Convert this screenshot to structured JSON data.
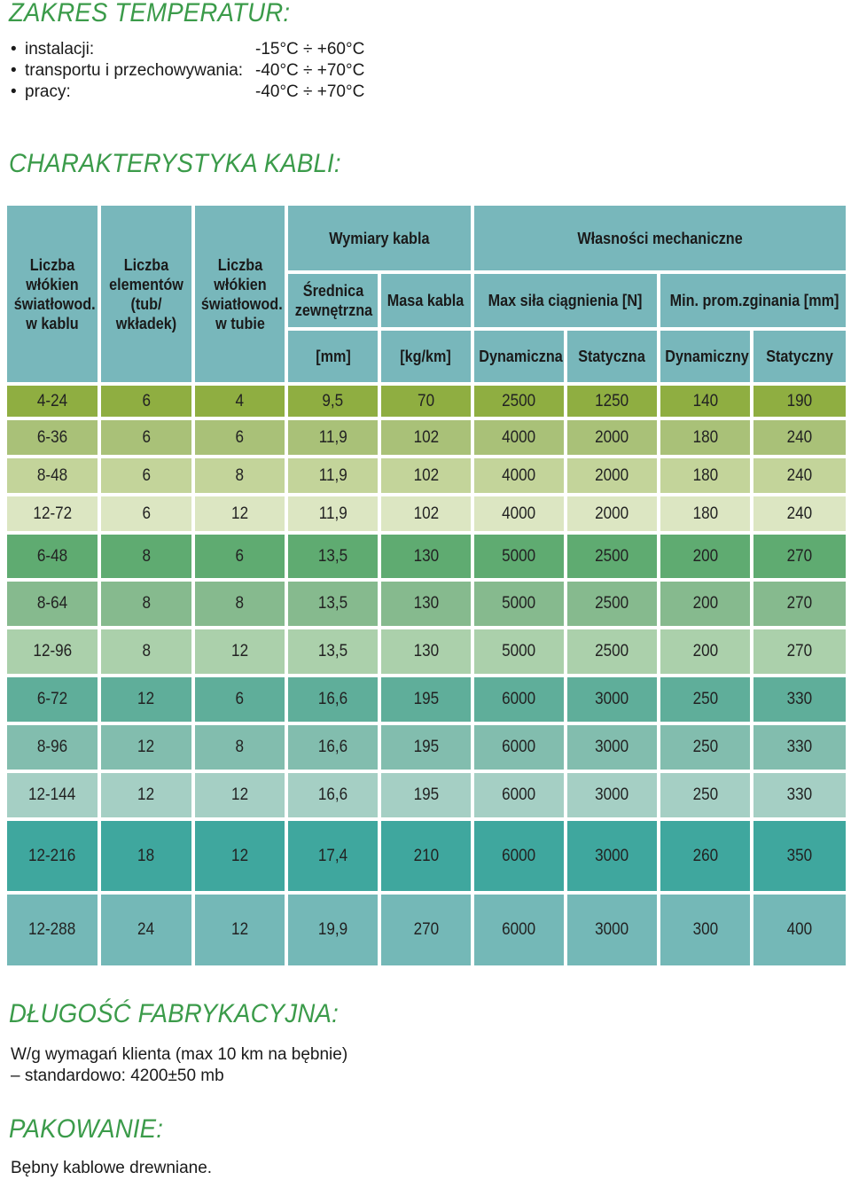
{
  "temperature": {
    "title": "ZAKRES TEMPERATUR:",
    "items": [
      {
        "bullet": "•",
        "label": "instalacji:",
        "value": "-15°C  ÷  +60°C"
      },
      {
        "bullet": "•",
        "label": "transportu i przechowywania:",
        "value": "-40°C  ÷  +70°C"
      },
      {
        "bullet": "•",
        "label": "pracy:",
        "value": "-40°C  ÷  +70°C"
      }
    ]
  },
  "characteristics": {
    "title": "CHARAKTERYSTYKA KABLI:",
    "headers": {
      "fibers_in_cable": "Liczba włókien światłowod. w kablu",
      "elements": "Liczba elementów (tub/ wkładek)",
      "fibers_in_tube": "Liczba włókien światłowod. w tubie",
      "dimensions": "Wymiary kabla",
      "mechanical": "Własności mechaniczne",
      "outer_diameter": "Średnica zewnętrzna",
      "cable_mass": "Masa kabla",
      "max_pull": "Max siła ciągnienia [N]",
      "min_bend": "Min. prom.zginania [mm]",
      "unit_mm": "[mm]",
      "unit_kgkm": "[kg/km]",
      "pull_dynamic": "Dynamiczna",
      "pull_static": "Statyczna",
      "bend_dynamic": "Dynamiczny",
      "bend_static": "Statyczny"
    },
    "rows": [
      [
        "4-24",
        "6",
        "4",
        "9,5",
        "70",
        "2500",
        "1250",
        "140",
        "190"
      ],
      [
        "6-36",
        "6",
        "6",
        "11,9",
        "102",
        "4000",
        "2000",
        "180",
        "240"
      ],
      [
        "8-48",
        "6",
        "8",
        "11,9",
        "102",
        "4000",
        "2000",
        "180",
        "240"
      ],
      [
        "12-72",
        "6",
        "12",
        "11,9",
        "102",
        "4000",
        "2000",
        "180",
        "240"
      ],
      [
        "6-48",
        "8",
        "6",
        "13,5",
        "130",
        "5000",
        "2500",
        "200",
        "270"
      ],
      [
        "8-64",
        "8",
        "8",
        "13,5",
        "130",
        "5000",
        "2500",
        "200",
        "270"
      ],
      [
        "12-96",
        "8",
        "12",
        "13,5",
        "130",
        "5000",
        "2500",
        "200",
        "270"
      ],
      [
        "6-72",
        "12",
        "6",
        "16,6",
        "195",
        "6000",
        "3000",
        "250",
        "330"
      ],
      [
        "8-96",
        "12",
        "8",
        "16,6",
        "195",
        "6000",
        "3000",
        "250",
        "330"
      ],
      [
        "12-144",
        "12",
        "12",
        "16,6",
        "195",
        "6000",
        "3000",
        "250",
        "330"
      ],
      [
        "12-216",
        "18",
        "12",
        "17,4",
        "210",
        "6000",
        "3000",
        "260",
        "350"
      ],
      [
        "12-288",
        "24",
        "12",
        "19,9",
        "270",
        "6000",
        "3000",
        "300",
        "400"
      ]
    ],
    "row_colors": [
      "#8fae41",
      "#a9c178",
      "#c3d49a",
      "#dce6c2",
      "#5fab71",
      "#86ba8e",
      "#abd0ab",
      "#5fae9a",
      "#82bdae",
      "#a5cfc4",
      "#3fa79e",
      "#74b8b7"
    ],
    "header_color": "#78b7bb"
  },
  "production_length": {
    "title": "DŁUGOŚĆ FABRYKACYJNA:",
    "line1": "W/g wymagań klienta (max 10 km na bębnie)",
    "line2": "– standardowo: 4200±50 mb"
  },
  "packaging": {
    "title": "PAKOWANIE:",
    "text": "Bębny kablowe drewniane."
  }
}
